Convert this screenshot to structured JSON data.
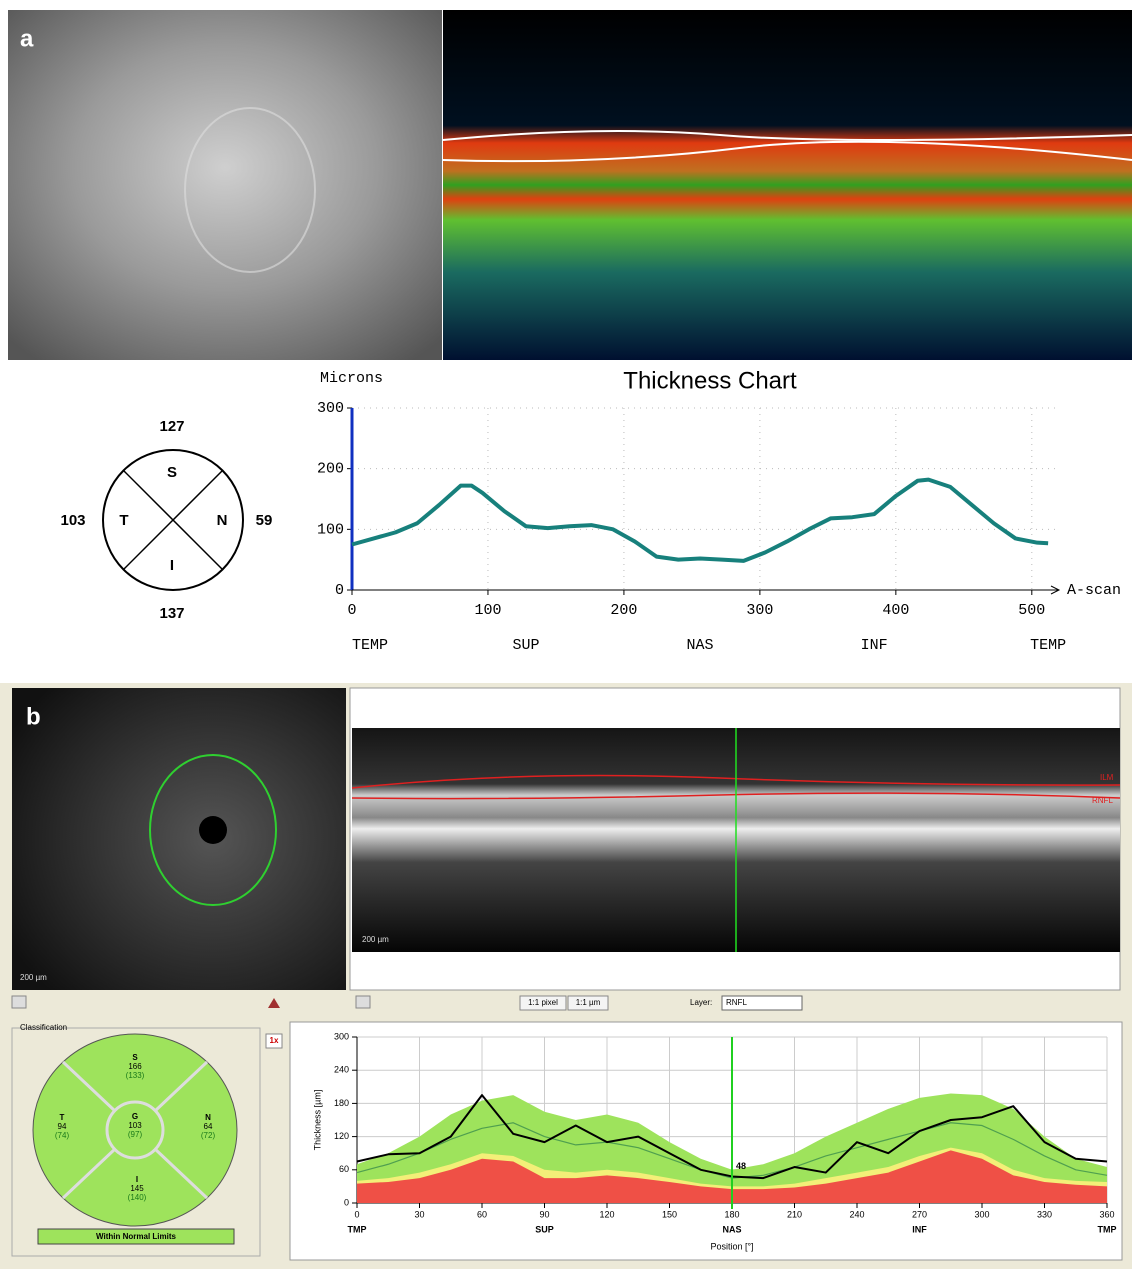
{
  "panel_a": {
    "label": "a",
    "sectors": [
      {
        "letter": "S",
        "value": 127
      },
      {
        "letter": "T",
        "value": 103
      },
      {
        "letter": "N",
        "value": 59
      },
      {
        "letter": "I",
        "value": 137
      }
    ]
  },
  "panel_b": {
    "label": "b",
    "scan_labels": [
      "ILM",
      "RNFL"
    ],
    "fundus_scale": "200 µm",
    "scan_scale": "200 µm",
    "toolbar": {
      "pixel": "1:1 pixel",
      "micron": "1:1 µm",
      "layer_label": "Layer:",
      "layer": "RNFL",
      "zoom": "1x"
    },
    "classification": {
      "title": "Classification",
      "sectors": [
        {
          "letter": "S",
          "value": "166",
          "normal": "(133)"
        },
        {
          "letter": "T",
          "value": "94",
          "normal": "(74)"
        },
        {
          "letter": "G",
          "value": "103",
          "normal": "(97)"
        },
        {
          "letter": "N",
          "value": "64",
          "normal": "(72)"
        },
        {
          "letter": "I",
          "value": "145",
          "normal": "(140)"
        }
      ],
      "status": "Within Normal Limits"
    }
  },
  "chart_data": [
    {
      "type": "line",
      "title": "Thickness Chart",
      "y_label": "Microns",
      "x_label": "A-scan",
      "x": [
        0,
        16,
        32,
        48,
        64,
        80,
        88,
        96,
        112,
        128,
        144,
        160,
        176,
        192,
        208,
        224,
        240,
        256,
        272,
        288,
        304,
        320,
        336,
        352,
        368,
        384,
        400,
        416,
        424,
        440,
        456,
        472,
        488,
        504,
        512
      ],
      "series": [
        {
          "color": "#17807c",
          "values": [
            75,
            85,
            95,
            110,
            140,
            172,
            172,
            160,
            130,
            105,
            102,
            105,
            107,
            100,
            80,
            55,
            50,
            52,
            50,
            48,
            62,
            80,
            100,
            118,
            120,
            125,
            155,
            180,
            182,
            170,
            140,
            110,
            85,
            78,
            77
          ]
        }
      ],
      "xlim": [
        0,
        520
      ],
      "xticks": [
        0,
        100,
        200,
        300,
        400,
        500
      ],
      "ylim": [
        0,
        300
      ],
      "yticks": [
        0,
        100,
        200,
        300
      ],
      "grid": true,
      "region_labels": [
        "TEMP",
        "SUP",
        "NAS",
        "INF",
        "TEMP"
      ]
    },
    {
      "type": "line",
      "y_label": "Thickness [µm]",
      "x_label": "Position [°]",
      "x": [
        0,
        15,
        30,
        45,
        60,
        75,
        90,
        105,
        120,
        135,
        150,
        165,
        180,
        195,
        210,
        225,
        240,
        255,
        270,
        285,
        300,
        315,
        330,
        345,
        360
      ],
      "series": [
        {
          "color": "#9ee35c",
          "fill": true,
          "values": [
            70,
            90,
            120,
            160,
            185,
            195,
            165,
            150,
            160,
            145,
            110,
            80,
            60,
            70,
            90,
            120,
            145,
            170,
            190,
            198,
            195,
            170,
            120,
            80,
            65
          ]
        },
        {
          "color": "#f3ef78",
          "fill": true,
          "values": [
            40,
            45,
            55,
            70,
            90,
            85,
            60,
            55,
            60,
            55,
            45,
            35,
            30,
            30,
            35,
            45,
            55,
            65,
            85,
            100,
            90,
            60,
            45,
            40,
            38
          ]
        },
        {
          "color": "#ef5046",
          "fill": true,
          "values": [
            35,
            38,
            45,
            60,
            80,
            75,
            45,
            45,
            50,
            45,
            38,
            30,
            25,
            25,
            28,
            35,
            45,
            55,
            75,
            95,
            80,
            50,
            38,
            33,
            30
          ]
        },
        {
          "color": "#4f9f4f",
          "values": [
            55,
            70,
            90,
            115,
            135,
            145,
            120,
            105,
            110,
            100,
            80,
            60,
            45,
            50,
            65,
            85,
            100,
            115,
            130,
            145,
            140,
            115,
            85,
            60,
            50
          ]
        },
        {
          "color": "#000000",
          "values": [
            75,
            88,
            90,
            120,
            195,
            125,
            110,
            140,
            110,
            120,
            90,
            60,
            48,
            45,
            65,
            55,
            110,
            90,
            130,
            150,
            155,
            175,
            110,
            80,
            75
          ]
        }
      ],
      "xlim": [
        0,
        360
      ],
      "xticks": [
        0,
        30,
        60,
        90,
        120,
        150,
        180,
        210,
        240,
        270,
        300,
        330,
        360
      ],
      "ylim": [
        0,
        300
      ],
      "yticks": [
        0,
        60,
        120,
        180,
        240,
        300
      ],
      "grid": true,
      "cursor_x": 180,
      "cursor_value": 48,
      "region_labels": [
        "TMP",
        "SUP",
        "NAS",
        "INF",
        "TMP"
      ]
    }
  ]
}
